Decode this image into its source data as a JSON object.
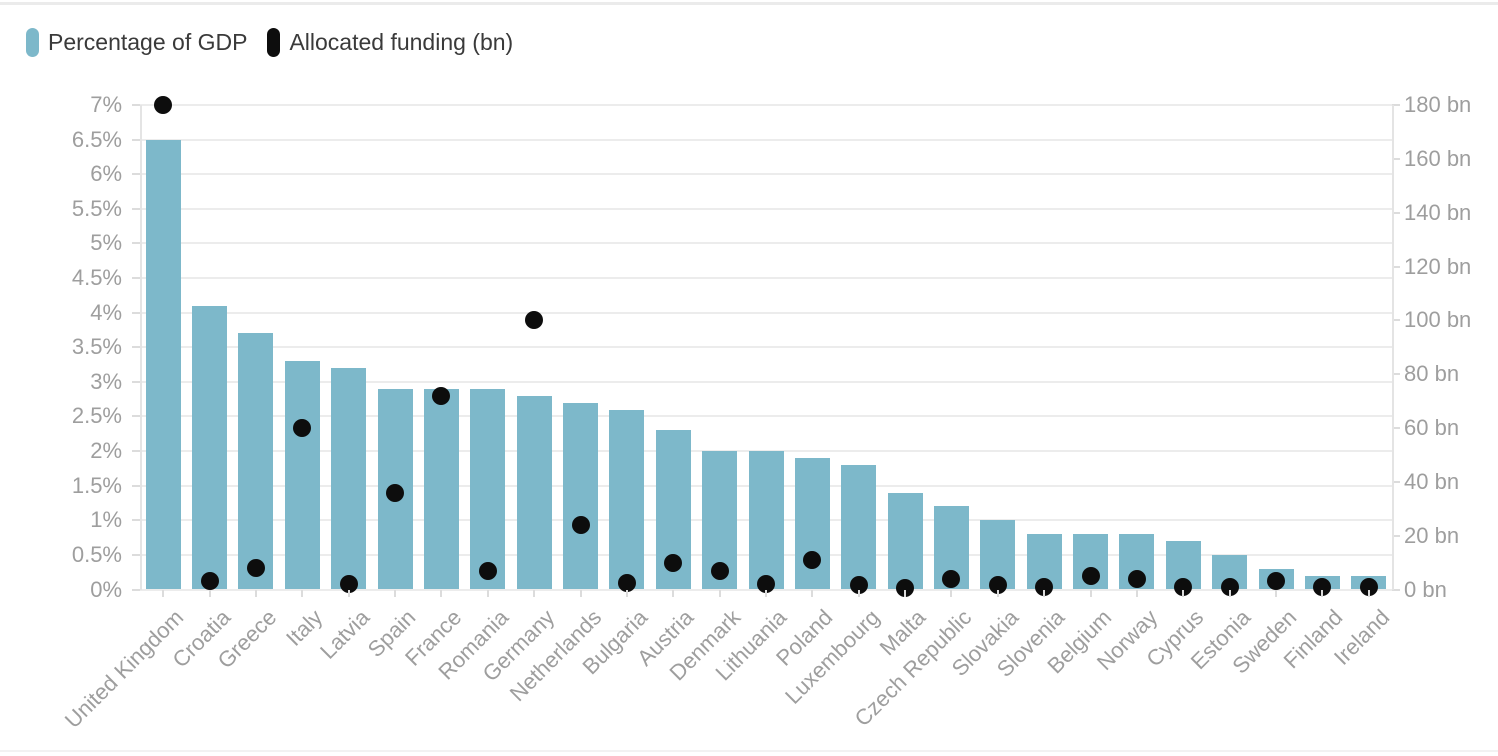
{
  "legend": [
    {
      "label": "Percentage of GDP",
      "color": "#7db8ca"
    },
    {
      "label": "Allocated funding (bn)",
      "color": "#0d0d0d"
    }
  ],
  "colors": {
    "bar": "#7db8ca",
    "dot": "#0d0d0d",
    "axis_text": "#9e9e9e",
    "legend_text": "#3a3a3a",
    "gridline": "#ececec",
    "axis_line": "#e4e4e4",
    "tick": "#dcdcdc"
  },
  "chart_data": {
    "type": "bar",
    "combo": "bar (left axis) + scatter dots (right axis)",
    "grid": true,
    "legend_position": "top-left",
    "categories": [
      "United Kingdom",
      "Croatia",
      "Greece",
      "Italy",
      "Latvia",
      "Spain",
      "France",
      "Romania",
      "Germany",
      "Netherlands",
      "Bulgaria",
      "Austria",
      "Denmark",
      "Lithuania",
      "Poland",
      "Luxembourg",
      "Malta",
      "Czech Republic",
      "Slovakia",
      "Slovenia",
      "Belgium",
      "Norway",
      "Cyprus",
      "Estonia",
      "Sweden",
      "Finland",
      "Ireland"
    ],
    "series": [
      {
        "name": "Percentage of GDP",
        "chart": "bar",
        "axis": "left",
        "unit": "%",
        "values": [
          6.5,
          4.1,
          3.7,
          3.3,
          3.2,
          2.9,
          2.9,
          2.9,
          2.8,
          2.7,
          2.6,
          2.3,
          2.0,
          2.0,
          1.9,
          1.8,
          1.4,
          1.2,
          1.0,
          0.8,
          0.8,
          0.8,
          0.7,
          0.5,
          0.3,
          0.2,
          0.2
        ]
      },
      {
        "name": "Allocated funding (bn)",
        "chart": "scatter",
        "axis": "right",
        "unit": "bn",
        "values": [
          180,
          3,
          8,
          60,
          2,
          36,
          72,
          7,
          100,
          24,
          2.5,
          10,
          7,
          2,
          11,
          1.5,
          0.5,
          4,
          1.5,
          1,
          5,
          4,
          1,
          1,
          3,
          1,
          1
        ]
      }
    ],
    "left_axis": {
      "min": 0,
      "max": 7,
      "tick_step": 0.5,
      "ticks": [
        0,
        0.5,
        1,
        1.5,
        2,
        2.5,
        3,
        3.5,
        4,
        4.5,
        5,
        5.5,
        6,
        6.5,
        7
      ],
      "tick_labels": [
        "0%",
        "0.5%",
        "1%",
        "1.5%",
        "2%",
        "2.5%",
        "3%",
        "3.5%",
        "4%",
        "4.5%",
        "5%",
        "5.5%",
        "6%",
        "6.5%",
        "7%"
      ]
    },
    "right_axis": {
      "min": 0,
      "max": 180,
      "tick_step": 20,
      "ticks": [
        0,
        20,
        40,
        60,
        80,
        100,
        120,
        140,
        160,
        180
      ],
      "tick_labels": [
        "0 bn",
        "20 bn",
        "40 bn",
        "60 bn",
        "80 bn",
        "100 bn",
        "120 bn",
        "140 bn",
        "160 bn",
        "180 bn"
      ]
    }
  }
}
